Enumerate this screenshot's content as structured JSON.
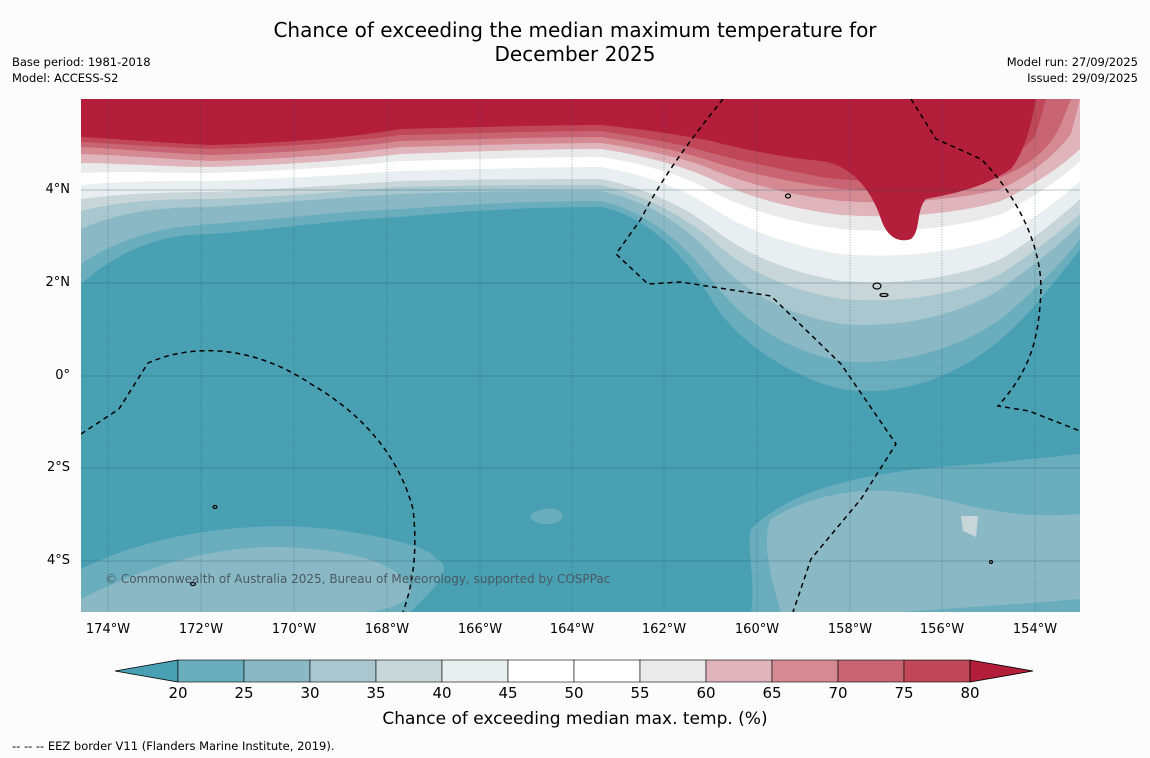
{
  "title_line1": "Chance of exceeding the median maximum temperature for",
  "title_line2": "December 2025",
  "meta_left": {
    "base_period": "Base period: 1981-2018",
    "model": "Model: ACCESS-S2"
  },
  "meta_right": {
    "model_run": "Model run: 27/09/2025",
    "issued": "Issued: 29/09/2025"
  },
  "copyright": "© Commonwealth of Australia 2025, Bureau of Meteorology, supported by COSPPac",
  "lat_labels": [
    "4°N",
    "2°N",
    "0°",
    "2°S",
    "4°S"
  ],
  "lon_labels": [
    "174°W",
    "172°W",
    "170°W",
    "168°W",
    "166°W",
    "164°W",
    "162°W",
    "160°W",
    "158°W",
    "156°W",
    "154°W"
  ],
  "colorbar": {
    "title": "Chance of exceeding median max. temp. (%)",
    "ticks": [
      "20",
      "25",
      "30",
      "35",
      "40",
      "45",
      "50",
      "55",
      "60",
      "65",
      "70",
      "75",
      "80"
    ],
    "colors": [
      "#48a0b2",
      "#6aaebd",
      "#8ab9c5",
      "#a8c7ce",
      "#c8d6d9",
      "#e9eef0",
      "#ffffff",
      "#ffffff",
      "#eaeaea",
      "#dfb4ba",
      "#d58992",
      "#c96472",
      "#bf4758",
      "#b31e3b"
    ]
  },
  "footnote": "--  --  -- EEZ border V11 (Flanders Marine Institute, 2019)."
}
